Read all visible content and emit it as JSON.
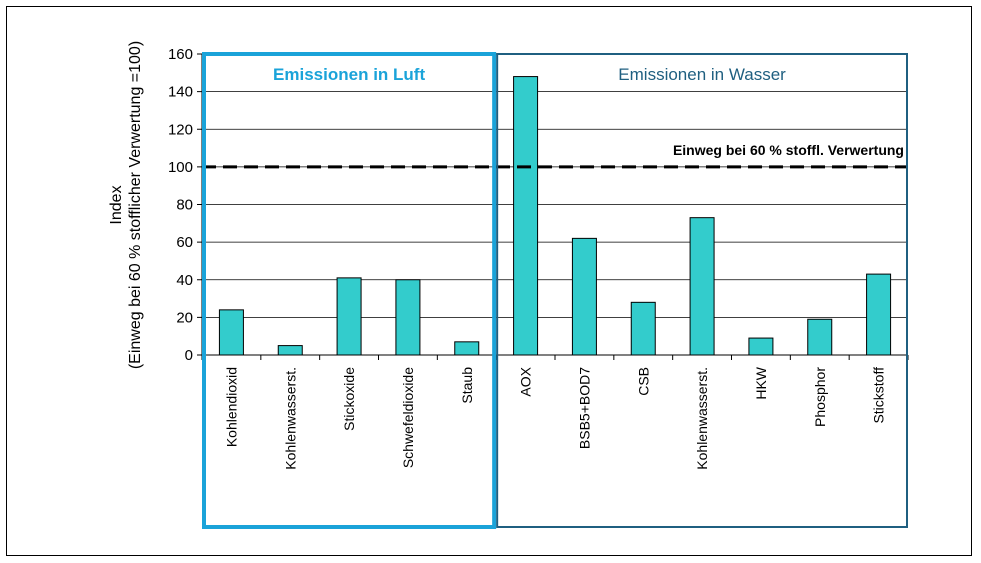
{
  "chart_data": {
    "type": "bar",
    "ylabel_line1": "Index",
    "ylabel_line2": "(Einweg bei 60 % stofflicher Verwertung =100)",
    "ylim": [
      0,
      160
    ],
    "yticks": [
      "0",
      "20",
      "40",
      "60",
      "80",
      "100",
      "120",
      "140",
      "160"
    ],
    "grid": true,
    "bar_color": "#33CCCC",
    "reference_line": {
      "value": 100,
      "label": "Einweg bei 60 % stoffl. Verwertung",
      "style": "dashed"
    },
    "groups": [
      {
        "label": "Emissionen in Luft",
        "color": "#1AA3D9",
        "bold": true
      },
      {
        "label": "Emissionen in Wasser",
        "color": "#1F5F80",
        "bold": false
      }
    ],
    "categories": [
      "Kohlendioxid",
      "Kohlenwasserst.",
      "Stickoxide",
      "Schwefeldioxide",
      "Staub",
      "AOX",
      "BSB5+BOD7",
      "CSB",
      "Kohlenwasserst.",
      "HKW",
      "Phosphor",
      "Stickstoff"
    ],
    "values": [
      24,
      5,
      41,
      40,
      7,
      148,
      62,
      28,
      73,
      9,
      19,
      43
    ],
    "category_group": [
      0,
      0,
      0,
      0,
      0,
      1,
      1,
      1,
      1,
      1,
      1,
      1
    ]
  }
}
